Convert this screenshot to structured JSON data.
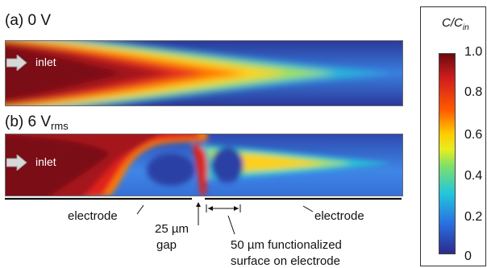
{
  "panel_a": {
    "label": "(a) 0 V",
    "inlet": "inlet"
  },
  "panel_b": {
    "label_main": "(b) 6 V",
    "label_sub": "rms",
    "inlet": "inlet"
  },
  "annotations": {
    "electrode_left": "electrode",
    "electrode_right": "electrode",
    "gap_line1": "25 µm",
    "gap_line2": "gap",
    "func_line1": "50 µm functionalized",
    "func_line2": "surface on electrode"
  },
  "colorbar": {
    "title_main": "C/C",
    "title_sub": "in",
    "ticks": [
      "1.0",
      "0.8",
      "0.6",
      "0.4",
      "0.2",
      "0"
    ],
    "colors": {
      "high": "#6b0a0d",
      "mid_high": "#ff5a00",
      "mid": "#e7ee1f",
      "mid_low": "#22c6dc",
      "low": "#2c2a8c"
    }
  },
  "icons": [
    "inlet-arrow-icon"
  ]
}
